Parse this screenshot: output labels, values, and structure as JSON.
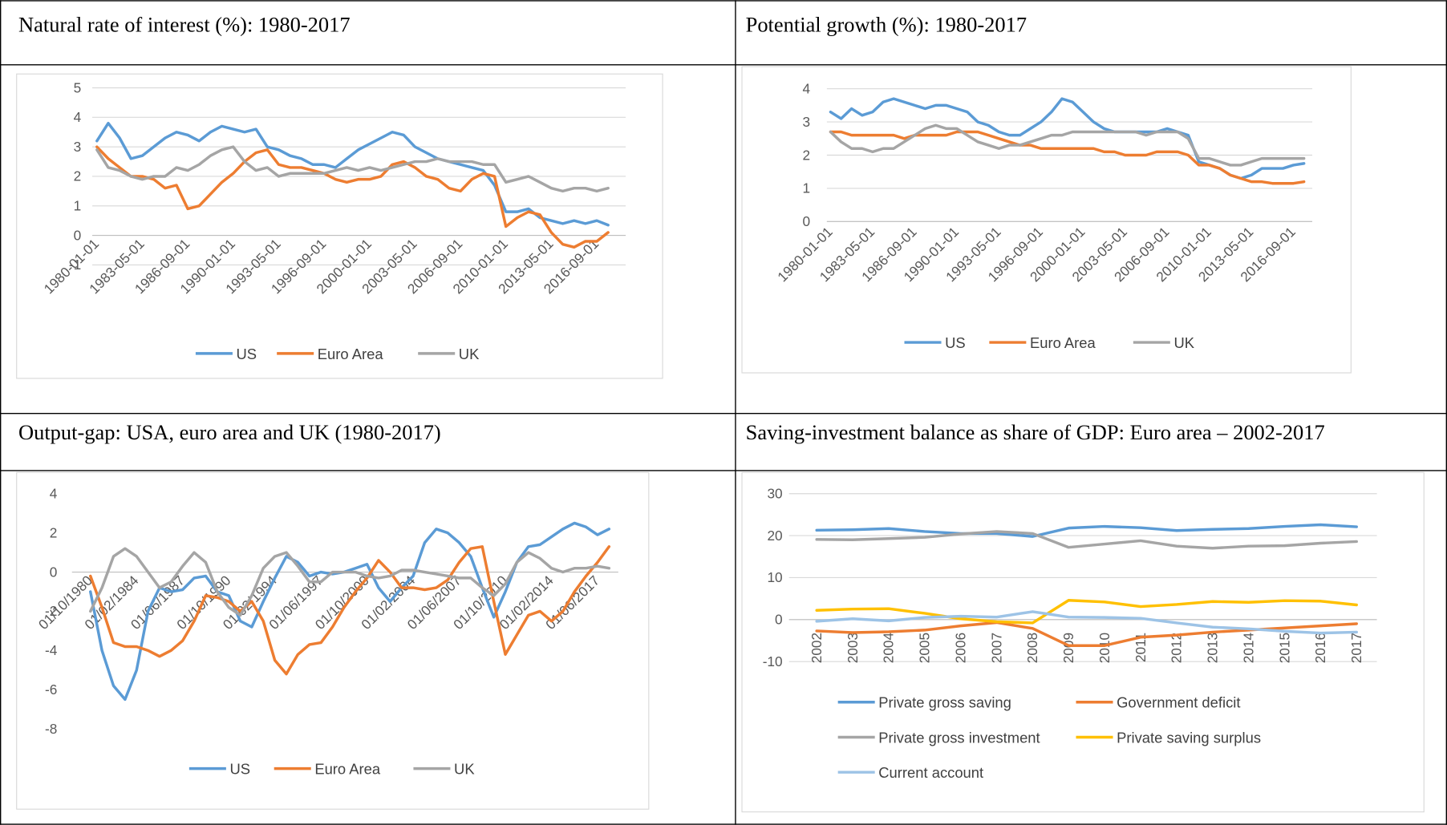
{
  "chart_data": [
    {
      "type": "line",
      "title": "Natural rate of interest (%): 1980-2017",
      "categories": [
        "1980-01-01",
        null,
        null,
        null,
        "1983-05-01",
        null,
        null,
        null,
        "1986-09-01",
        null,
        null,
        null,
        "1990-01-01",
        null,
        null,
        null,
        "1993-05-01",
        null,
        null,
        null,
        "1996-09-01",
        null,
        null,
        null,
        "2000-01-01",
        null,
        null,
        null,
        "2003-05-01",
        null,
        null,
        null,
        "2006-09-01",
        null,
        null,
        null,
        "2010-01-01",
        null,
        null,
        null,
        "2013-05-01",
        null,
        null,
        null,
        "2016-09-01",
        null
      ],
      "series": [
        {
          "name": "US",
          "color": "#5b9bd5",
          "values": [
            3.2,
            3.8,
            3.3,
            2.6,
            2.7,
            3.0,
            3.3,
            3.5,
            3.4,
            3.2,
            3.5,
            3.7,
            3.6,
            3.5,
            3.6,
            3.0,
            2.9,
            2.7,
            2.6,
            2.4,
            2.4,
            2.3,
            2.6,
            2.9,
            3.1,
            3.3,
            3.5,
            3.4,
            3.0,
            2.8,
            2.6,
            2.5,
            2.4,
            2.3,
            2.2,
            1.7,
            0.8,
            0.8,
            0.9,
            0.6,
            0.5,
            0.4,
            0.5,
            0.4,
            0.5,
            0.35
          ]
        },
        {
          "name": "Euro Area",
          "color": "#ed7d31",
          "values": [
            3.0,
            2.6,
            2.3,
            2.0,
            2.0,
            1.9,
            1.6,
            1.7,
            0.9,
            1.0,
            1.4,
            1.8,
            2.1,
            2.5,
            2.8,
            2.9,
            2.4,
            2.3,
            2.3,
            2.2,
            2.1,
            1.9,
            1.8,
            1.9,
            1.9,
            2.0,
            2.4,
            2.5,
            2.3,
            2.0,
            1.9,
            1.6,
            1.5,
            1.9,
            2.1,
            2.0,
            0.3,
            0.6,
            0.8,
            0.7,
            0.1,
            -0.3,
            -0.4,
            -0.2,
            -0.2,
            0.1
          ]
        },
        {
          "name": "UK",
          "color": "#a5a5a5",
          "values": [
            2.9,
            2.3,
            2.2,
            2.0,
            1.9,
            2.0,
            2.0,
            2.3,
            2.2,
            2.4,
            2.7,
            2.9,
            3.0,
            2.5,
            2.2,
            2.3,
            2.0,
            2.1,
            2.1,
            2.1,
            2.1,
            2.2,
            2.3,
            2.2,
            2.3,
            2.2,
            2.3,
            2.4,
            2.5,
            2.5,
            2.6,
            2.5,
            2.5,
            2.5,
            2.4,
            2.4,
            1.8,
            1.9,
            2.0,
            1.8,
            1.6,
            1.5,
            1.6,
            1.6,
            1.5,
            1.6
          ]
        }
      ],
      "ylim": [
        -1,
        5
      ],
      "yticks": [
        -1,
        0,
        1,
        2,
        3,
        4,
        5
      ],
      "grid": true,
      "legend": "bottom"
    },
    {
      "type": "line",
      "title": "Potential growth (%): 1980-2017",
      "categories": [
        "1980-01-01",
        null,
        null,
        null,
        "1983-05-01",
        null,
        null,
        null,
        "1986-09-01",
        null,
        null,
        null,
        "1990-01-01",
        null,
        null,
        null,
        "1993-05-01",
        null,
        null,
        null,
        "1996-09-01",
        null,
        null,
        null,
        "2000-01-01",
        null,
        null,
        null,
        "2003-05-01",
        null,
        null,
        null,
        "2006-09-01",
        null,
        null,
        null,
        "2010-01-01",
        null,
        null,
        null,
        "2013-05-01",
        null,
        null,
        null,
        "2016-09-01",
        null
      ],
      "series": [
        {
          "name": "US",
          "color": "#5b9bd5",
          "values": [
            3.3,
            3.1,
            3.4,
            3.2,
            3.3,
            3.6,
            3.7,
            3.6,
            3.5,
            3.4,
            3.5,
            3.5,
            3.4,
            3.3,
            3.0,
            2.9,
            2.7,
            2.6,
            2.6,
            2.8,
            3.0,
            3.3,
            3.7,
            3.6,
            3.3,
            3.0,
            2.8,
            2.7,
            2.7,
            2.7,
            2.7,
            2.7,
            2.8,
            2.7,
            2.6,
            1.8,
            1.7,
            1.6,
            1.4,
            1.3,
            1.4,
            1.6,
            1.6,
            1.6,
            1.7,
            1.75
          ]
        },
        {
          "name": "Euro Area",
          "color": "#ed7d31",
          "values": [
            2.7,
            2.7,
            2.6,
            2.6,
            2.6,
            2.6,
            2.6,
            2.5,
            2.6,
            2.6,
            2.6,
            2.6,
            2.7,
            2.7,
            2.7,
            2.6,
            2.5,
            2.4,
            2.3,
            2.3,
            2.2,
            2.2,
            2.2,
            2.2,
            2.2,
            2.2,
            2.1,
            2.1,
            2.0,
            2.0,
            2.0,
            2.1,
            2.1,
            2.1,
            2.0,
            1.7,
            1.7,
            1.6,
            1.4,
            1.3,
            1.2,
            1.2,
            1.15,
            1.15,
            1.15,
            1.2
          ]
        },
        {
          "name": "UK",
          "color": "#a5a5a5",
          "values": [
            2.7,
            2.4,
            2.2,
            2.2,
            2.1,
            2.2,
            2.2,
            2.4,
            2.6,
            2.8,
            2.9,
            2.8,
            2.8,
            2.6,
            2.4,
            2.3,
            2.2,
            2.3,
            2.3,
            2.4,
            2.5,
            2.6,
            2.6,
            2.7,
            2.7,
            2.7,
            2.7,
            2.7,
            2.7,
            2.7,
            2.6,
            2.7,
            2.7,
            2.7,
            2.5,
            1.9,
            1.9,
            1.8,
            1.7,
            1.7,
            1.8,
            1.9,
            1.9,
            1.9,
            1.9,
            1.9
          ]
        }
      ],
      "ylim": [
        0,
        4
      ],
      "yticks": [
        0,
        1,
        2,
        3,
        4
      ],
      "grid": true,
      "legend": "bottom"
    },
    {
      "type": "line",
      "title": "Output-gap: USA, euro area and UK (1980-2017)",
      "categories": [
        "01/10/1980",
        null,
        null,
        null,
        "01/02/1984",
        null,
        null,
        null,
        "01/06/1987",
        null,
        null,
        null,
        "01/10/1990",
        null,
        null,
        null,
        "01/02/1994",
        null,
        null,
        null,
        "01/06/1997",
        null,
        null,
        null,
        "01/10/2000",
        null,
        null,
        null,
        "01/02/2004",
        null,
        null,
        null,
        "01/06/2007",
        null,
        null,
        null,
        "01/10/2010",
        null,
        null,
        null,
        "01/02/2014",
        null,
        null,
        null,
        "01/06/2017",
        null
      ],
      "series": [
        {
          "name": "US",
          "color": "#5b9bd5",
          "values": [
            -1.0,
            -4.0,
            -5.8,
            -6.5,
            -5.0,
            -2.0,
            -0.8,
            -1.0,
            -0.9,
            -0.3,
            -0.2,
            -1.0,
            -1.2,
            -2.5,
            -2.8,
            -1.5,
            -0.3,
            0.8,
            0.5,
            -0.2,
            0.0,
            -0.1,
            0.0,
            0.2,
            0.4,
            -0.8,
            -1.5,
            -0.8,
            -0.2,
            1.5,
            2.2,
            2.0,
            1.5,
            0.8,
            -0.8,
            -2.3,
            -1.0,
            0.5,
            1.3,
            1.4,
            1.8,
            2.2,
            2.5,
            2.3,
            1.9,
            2.2
          ]
        },
        {
          "name": "Euro Area",
          "color": "#ed7d31",
          "values": [
            -0.2,
            -1.8,
            -3.6,
            -3.8,
            -3.8,
            -4.0,
            -4.3,
            -4.0,
            -3.5,
            -2.5,
            -1.2,
            -1.3,
            -1.5,
            -2.0,
            -1.5,
            -2.5,
            -4.5,
            -5.2,
            -4.2,
            -3.7,
            -3.6,
            -2.8,
            -1.8,
            -1.0,
            -0.3,
            0.6,
            0.0,
            -0.8,
            -0.8,
            -0.9,
            -0.8,
            -0.4,
            0.5,
            1.2,
            1.3,
            -1.5,
            -4.2,
            -3.2,
            -2.2,
            -2.0,
            -2.5,
            -2.0,
            -1.0,
            -0.2,
            0.5,
            1.3
          ]
        },
        {
          "name": "UK",
          "color": "#a5a5a5",
          "values": [
            -2.0,
            -0.8,
            0.8,
            1.2,
            0.8,
            0.0,
            -0.8,
            -0.5,
            0.3,
            1.0,
            0.5,
            -1.0,
            -1.8,
            -2.2,
            -1.2,
            0.2,
            0.8,
            1.0,
            0.3,
            -0.5,
            -0.5,
            0.0,
            0.0,
            0.0,
            -0.2,
            -0.3,
            -0.2,
            0.1,
            0.1,
            0.0,
            -0.1,
            -0.2,
            -0.3,
            -0.3,
            -0.8,
            -1.2,
            -0.6,
            0.5,
            1.0,
            0.7,
            0.2,
            0.0,
            0.2,
            0.2,
            0.3,
            0.2
          ]
        }
      ],
      "ylim": [
        -8,
        4
      ],
      "yticks": [
        -8,
        -6,
        -4,
        -2,
        0,
        2,
        4
      ],
      "grid": false,
      "legend": "bottom"
    },
    {
      "type": "line",
      "title": "Saving-investment balance as share of GDP: Euro area – 2002-2017",
      "categories": [
        "2002",
        "2003",
        "2004",
        "2005",
        "2006",
        "2007",
        "2008",
        "2009",
        "2010",
        "2011",
        "2012",
        "2013",
        "2014",
        "2015",
        "2016",
        "2017"
      ],
      "series": [
        {
          "name": "Private gross saving",
          "color": "#5b9bd5",
          "values": [
            21.3,
            21.4,
            21.7,
            21.0,
            20.5,
            20.5,
            19.8,
            21.8,
            22.2,
            21.9,
            21.2,
            21.5,
            21.7,
            22.2,
            22.6,
            22.1
          ]
        },
        {
          "name": "Government deficit",
          "color": "#ed7d31",
          "values": [
            -2.7,
            -3.1,
            -2.9,
            -2.5,
            -1.5,
            -0.7,
            -2.1,
            -6.2,
            -6.2,
            -4.2,
            -3.7,
            -3.0,
            -2.5,
            -2.0,
            -1.5,
            -1.0
          ]
        },
        {
          "name": "Private gross investment",
          "color": "#a5a5a5",
          "values": [
            19.1,
            19.0,
            19.3,
            19.6,
            20.4,
            21.0,
            20.5,
            17.2,
            18.0,
            18.8,
            17.5,
            17.0,
            17.5,
            17.6,
            18.2,
            18.6
          ]
        },
        {
          "name": "Private saving surplus",
          "color": "#ffc000",
          "values": [
            2.2,
            2.5,
            2.6,
            1.5,
            0.2,
            -0.5,
            -0.8,
            4.6,
            4.2,
            3.1,
            3.6,
            4.3,
            4.1,
            4.5,
            4.4,
            3.5
          ]
        },
        {
          "name": "Current account",
          "color": "#9dc3e6",
          "values": [
            -0.4,
            0.2,
            -0.3,
            0.5,
            0.8,
            0.6,
            1.9,
            0.6,
            0.5,
            0.3,
            -0.8,
            -1.8,
            -2.2,
            -2.8,
            -3.2,
            -3.0
          ]
        }
      ],
      "ylim": [
        -10,
        30
      ],
      "yticks": [
        -10,
        0,
        10,
        20,
        30
      ],
      "grid": true,
      "legend": "bottom"
    }
  ]
}
